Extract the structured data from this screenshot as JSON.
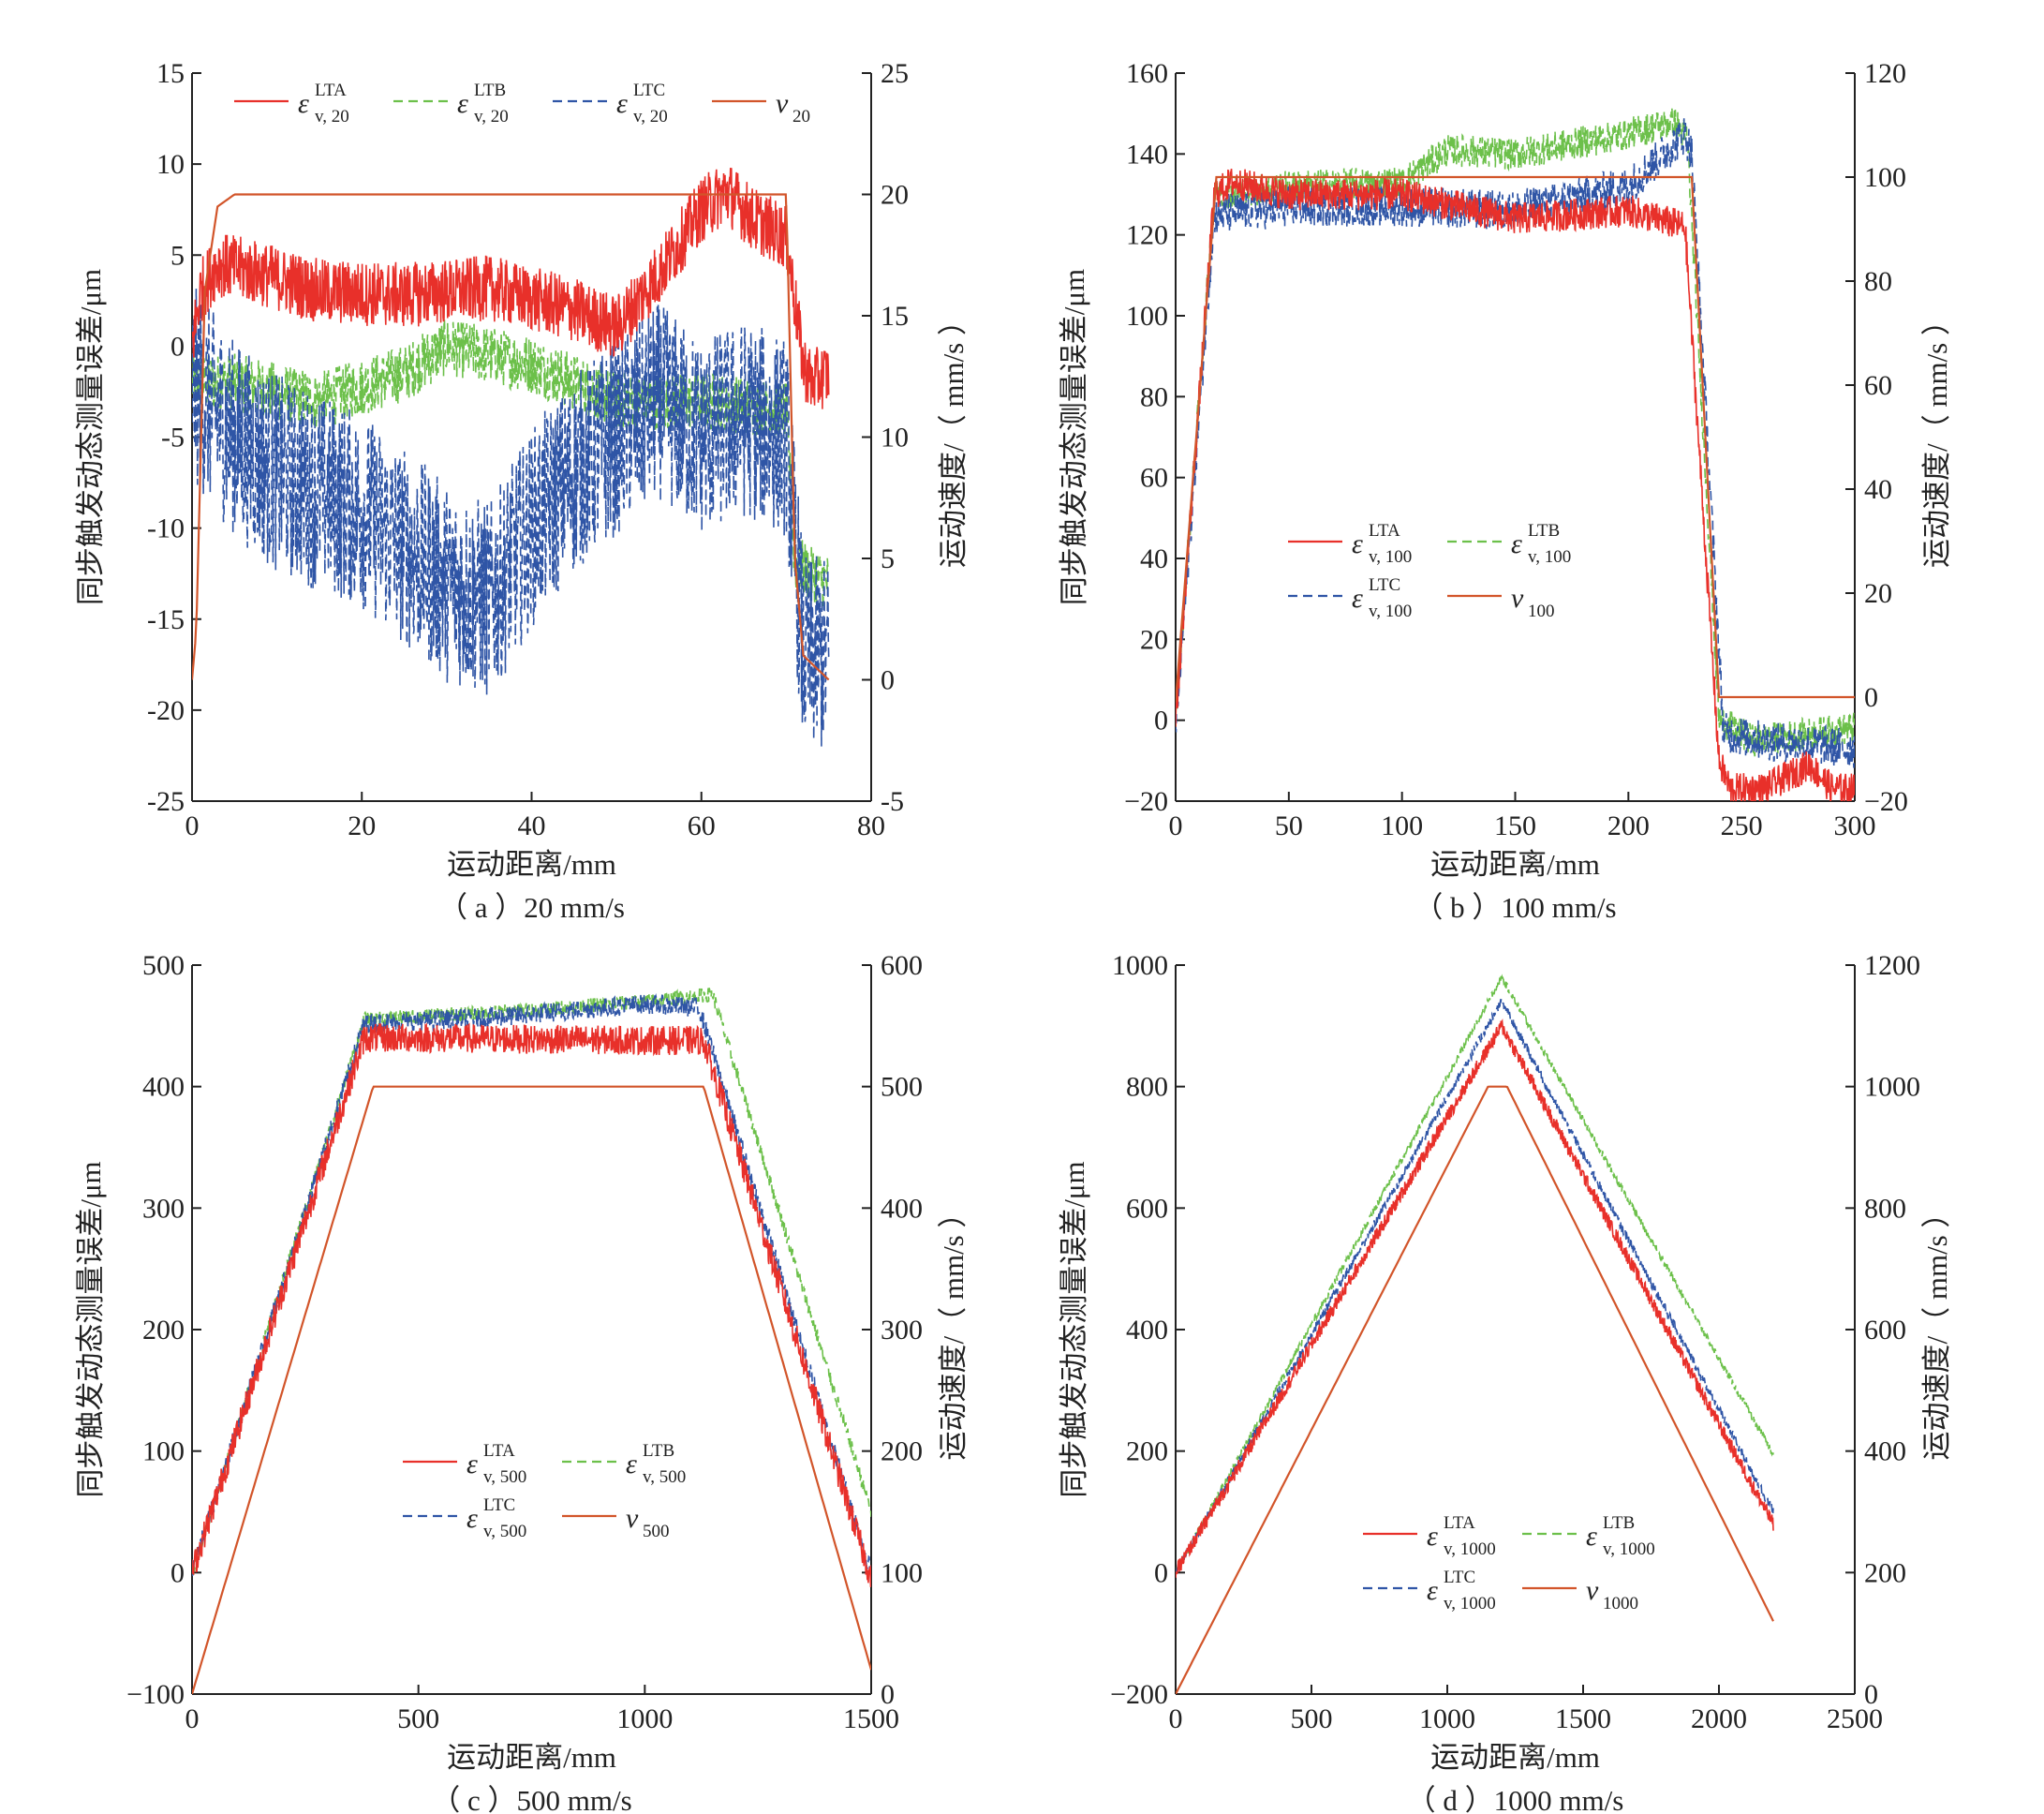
{
  "figure": {
    "panels": [
      {
        "id": "a",
        "caption": "（ a ）20 mm/s"
      },
      {
        "id": "b",
        "caption": "（ b ）100 mm/s"
      },
      {
        "id": "c",
        "caption": "（ c ）500 mm/s"
      },
      {
        "id": "d",
        "caption": "（ d ）1000 mm/s"
      }
    ]
  },
  "colors": {
    "LTA": "#e8302a",
    "LTB": "#6cc04a",
    "LTC": "#2f55a6",
    "v": "#d2552a",
    "axis": "#222222"
  },
  "chart_data": [
    {
      "type": "line",
      "panel": "a",
      "xlabel": "运动距离/mm",
      "ylabel": "同步触发动态测量误差/μm",
      "y2label": "运动速度/（ mm/s ）",
      "xlim": [
        0,
        80
      ],
      "ylim": [
        -25,
        15
      ],
      "y2lim": [
        -5,
        25
      ],
      "xticks": [
        "0",
        "20",
        "40",
        "60",
        "80"
      ],
      "yticks": [
        "15",
        "10",
        "5",
        "0",
        "-5",
        "-10",
        "-15",
        "-20",
        "-25"
      ],
      "y2ticks": [
        "25",
        "20",
        "15",
        "10",
        "5",
        "0",
        "-5"
      ],
      "legend": [
        {
          "key": "LTA",
          "sym": "ε",
          "sup": "LTA",
          "sub": "v, 20"
        },
        {
          "key": "LTB",
          "sym": "ε",
          "sup": "LTB",
          "sub": "v, 20"
        },
        {
          "key": "LTC",
          "sym": "ε",
          "sup": "LTC",
          "sub": "v, 20"
        },
        {
          "key": "v",
          "sym": "v",
          "sup": "",
          "sub": "20"
        }
      ],
      "series": [
        {
          "key": "LTA",
          "axis": "left",
          "points": [
            [
              0,
              0
            ],
            [
              1,
              3
            ],
            [
              3,
              4.5
            ],
            [
              8,
              4
            ],
            [
              15,
              3
            ],
            [
              25,
              2.8
            ],
            [
              35,
              3.2
            ],
            [
              45,
              2
            ],
            [
              50,
              1
            ],
            [
              55,
              4
            ],
            [
              60,
              7.5
            ],
            [
              63,
              8.5
            ],
            [
              66,
              7
            ],
            [
              70,
              6
            ],
            [
              72,
              -1
            ],
            [
              73,
              -2
            ],
            [
              75,
              -1.5
            ]
          ]
        },
        {
          "key": "LTB",
          "axis": "left",
          "points": [
            [
              0,
              -2
            ],
            [
              5,
              -2
            ],
            [
              15,
              -3
            ],
            [
              25,
              -1.5
            ],
            [
              30,
              0
            ],
            [
              35,
              -0.5
            ],
            [
              40,
              -1
            ],
            [
              45,
              -2
            ],
            [
              50,
              -3
            ],
            [
              60,
              -3
            ],
            [
              70,
              -3.5
            ],
            [
              71,
              -12
            ],
            [
              75,
              -13
            ]
          ]
        },
        {
          "key": "LTC",
          "axis": "left",
          "points": [
            [
              0,
              -2
            ],
            [
              5,
              -5
            ],
            [
              10,
              -7
            ],
            [
              20,
              -9
            ],
            [
              30,
              -13
            ],
            [
              35,
              -14
            ],
            [
              40,
              -10
            ],
            [
              45,
              -7
            ],
            [
              50,
              -5
            ],
            [
              55,
              -3
            ],
            [
              60,
              -5
            ],
            [
              65,
              -4
            ],
            [
              70,
              -5
            ],
            [
              72,
              -17
            ],
            [
              75,
              -17
            ]
          ]
        },
        {
          "key": "v",
          "axis": "right",
          "points": [
            [
              0,
              0
            ],
            [
              0.5,
              2
            ],
            [
              1.5,
              16
            ],
            [
              3,
              19.5
            ],
            [
              5,
              20
            ],
            [
              70,
              20
            ],
            [
              71,
              5
            ],
            [
              72,
              1
            ],
            [
              75,
              0
            ]
          ]
        }
      ]
    },
    {
      "type": "line",
      "panel": "b",
      "xlabel": "运动距离/mm",
      "ylabel": "同步触发动态测量误差/μm",
      "y2label": "运动速度/（ mm/s ）",
      "xlim": [
        0,
        300
      ],
      "ylim": [
        -20,
        160
      ],
      "y2lim": [
        -20,
        120
      ],
      "xticks": [
        "0",
        "50",
        "100",
        "150",
        "200",
        "250",
        "300"
      ],
      "yticks": [
        "160",
        "140",
        "120",
        "100",
        "80",
        "60",
        "40",
        "20",
        "0",
        "−20"
      ],
      "y2ticks": [
        "120",
        "100",
        "80",
        "60",
        "40",
        "20",
        "0",
        "−20"
      ],
      "legend": [
        {
          "key": "LTA",
          "sym": "ε",
          "sup": "LTA",
          "sub": "v, 100"
        },
        {
          "key": "LTB",
          "sym": "ε",
          "sup": "LTB",
          "sub": "v, 100"
        },
        {
          "key": "LTC",
          "sym": "ε",
          "sup": "LTC",
          "sub": "v, 100"
        },
        {
          "key": "v",
          "sym": "v",
          "sup": "",
          "sub": "100"
        }
      ],
      "series": [
        {
          "key": "LTA",
          "axis": "left",
          "points": [
            [
              0,
              0
            ],
            [
              17,
              130
            ],
            [
              25,
              133
            ],
            [
              50,
              130
            ],
            [
              100,
              130
            ],
            [
              150,
              124
            ],
            [
              200,
              126
            ],
            [
              225,
              122
            ],
            [
              240,
              -10
            ],
            [
              245,
              -17
            ],
            [
              260,
              -17
            ],
            [
              280,
              -11
            ],
            [
              290,
              -17
            ],
            [
              300,
              -17
            ]
          ]
        },
        {
          "key": "LTB",
          "axis": "left",
          "points": [
            [
              0,
              0
            ],
            [
              17,
              130
            ],
            [
              50,
              132
            ],
            [
              100,
              133
            ],
            [
              120,
              141
            ],
            [
              150,
              140
            ],
            [
              200,
              145
            ],
            [
              220,
              148
            ],
            [
              226,
              144
            ],
            [
              240,
              0
            ],
            [
              255,
              -5
            ],
            [
              300,
              -2
            ]
          ]
        },
        {
          "key": "LTC",
          "axis": "left",
          "points": [
            [
              0,
              -2
            ],
            [
              17,
              125
            ],
            [
              50,
              127
            ],
            [
              100,
              127
            ],
            [
              150,
              126
            ],
            [
              200,
              132
            ],
            [
              225,
              145
            ],
            [
              228,
              140
            ],
            [
              242,
              -3
            ],
            [
              260,
              -5
            ],
            [
              300,
              -7
            ]
          ]
        },
        {
          "key": "v",
          "axis": "right",
          "points": [
            [
              0,
              -1
            ],
            [
              18,
              100
            ],
            [
              228,
              100
            ],
            [
              240,
              0
            ],
            [
              300,
              0
            ]
          ]
        }
      ]
    },
    {
      "type": "line",
      "panel": "c",
      "xlabel": "运动距离/mm",
      "ylabel": "同步触发动态测量误差/μm",
      "y2label": "运动速度/（ mm/s ）",
      "xlim": [
        0,
        1500
      ],
      "ylim": [
        -100,
        500
      ],
      "y2lim": [
        0,
        600
      ],
      "xticks": [
        "0",
        "500",
        "1000",
        "1500"
      ],
      "yticks": [
        "500",
        "400",
        "300",
        "200",
        "100",
        "0",
        "−100"
      ],
      "y2ticks": [
        "600",
        "500",
        "400",
        "300",
        "200",
        "100",
        "0"
      ],
      "legend": [
        {
          "key": "LTA",
          "sym": "ε",
          "sup": "LTA",
          "sub": "v, 500"
        },
        {
          "key": "LTB",
          "sym": "ε",
          "sup": "LTB",
          "sub": "v, 500"
        },
        {
          "key": "LTC",
          "sym": "ε",
          "sup": "LTC",
          "sub": "v, 500"
        },
        {
          "key": "v",
          "sym": "v",
          "sup": "",
          "sub": "500"
        }
      ],
      "series": [
        {
          "key": "LTA",
          "axis": "left",
          "points": [
            [
              0,
              0
            ],
            [
              380,
              440
            ],
            [
              500,
              440
            ],
            [
              1000,
              438
            ],
            [
              1130,
              438
            ],
            [
              1500,
              -5
            ]
          ]
        },
        {
          "key": "LTB",
          "axis": "left",
          "points": [
            [
              0,
              0
            ],
            [
              380,
              455
            ],
            [
              700,
              462
            ],
            [
              1000,
              470
            ],
            [
              1150,
              476
            ],
            [
              1500,
              50
            ]
          ]
        },
        {
          "key": "LTC",
          "axis": "left",
          "points": [
            [
              0,
              0
            ],
            [
              380,
              452
            ],
            [
              700,
              458
            ],
            [
              1000,
              468
            ],
            [
              1120,
              465
            ],
            [
              1500,
              0
            ]
          ]
        },
        {
          "key": "v",
          "axis": "right",
          "points": [
            [
              0,
              0
            ],
            [
              400,
              500
            ],
            [
              1130,
              500
            ],
            [
              1500,
              20
            ]
          ]
        }
      ]
    },
    {
      "type": "line",
      "panel": "d",
      "xlabel": "运动距离/mm",
      "ylabel": "同步触发动态测量误差/μm",
      "y2label": "运动速度/（ mm/s ）",
      "xlim": [
        0,
        2500
      ],
      "ylim": [
        -200,
        1000
      ],
      "y2lim": [
        0,
        1200
      ],
      "xticks": [
        "0",
        "500",
        "1000",
        "1500",
        "2000",
        "2500"
      ],
      "yticks": [
        "1000",
        "800",
        "600",
        "400",
        "200",
        "0",
        "−200"
      ],
      "y2ticks": [
        "1200",
        "1000",
        "800",
        "600",
        "400",
        "200",
        "0"
      ],
      "legend": [
        {
          "key": "LTA",
          "sym": "ε",
          "sup": "LTA",
          "sub": "v, 1000"
        },
        {
          "key": "LTB",
          "sym": "ε",
          "sup": "LTB",
          "sub": "v, 1000"
        },
        {
          "key": "LTC",
          "sym": "ε",
          "sup": "LTC",
          "sub": "v, 1000"
        },
        {
          "key": "v",
          "sym": "v",
          "sup": "",
          "sub": "1000"
        }
      ],
      "series": [
        {
          "key": "LTA",
          "axis": "left",
          "points": [
            [
              0,
              0
            ],
            [
              1200,
              900
            ],
            [
              2200,
              80
            ]
          ]
        },
        {
          "key": "LTB",
          "axis": "left",
          "points": [
            [
              0,
              0
            ],
            [
              1200,
              980
            ],
            [
              2200,
              195
            ]
          ]
        },
        {
          "key": "LTC",
          "axis": "left",
          "points": [
            [
              0,
              0
            ],
            [
              1200,
              940
            ],
            [
              2200,
              100
            ]
          ]
        },
        {
          "key": "v",
          "axis": "right",
          "points": [
            [
              0,
              0
            ],
            [
              1150,
              1000
            ],
            [
              1220,
              1000
            ],
            [
              2200,
              120
            ]
          ]
        }
      ]
    }
  ]
}
